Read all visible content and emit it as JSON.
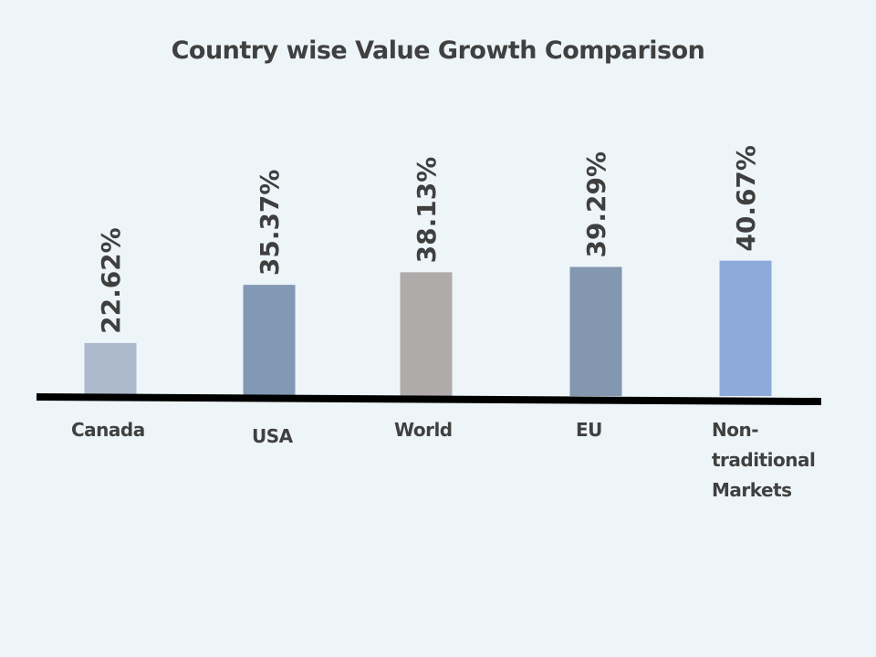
{
  "chart_data": {
    "type": "bar",
    "title": "Country wise Value Growth Comparison",
    "xlabel": "",
    "ylabel": "",
    "ylim": [
      0,
      45
    ],
    "grid": false,
    "legend": "none",
    "categories": [
      "Canada",
      "USA",
      "World",
      "EU",
      "Non-traditional Markets"
    ],
    "category_lines": [
      [
        "Canada"
      ],
      [
        "USA"
      ],
      [
        "World"
      ],
      [
        "EU"
      ],
      [
        "Non-",
        "traditional",
        "Markets"
      ]
    ],
    "values": [
      22.62,
      35.37,
      38.13,
      39.29,
      40.67
    ],
    "data_labels": [
      "22.62%",
      "35.37%",
      "38.13%",
      "39.29%",
      "40.67%"
    ],
    "unit": "%",
    "colors": [
      "#adb9cc",
      "#8298b4",
      "#b0abab",
      "#8497b0",
      "#8eaadb"
    ],
    "axis_color": "#000000",
    "background": "#edf5f9"
  }
}
